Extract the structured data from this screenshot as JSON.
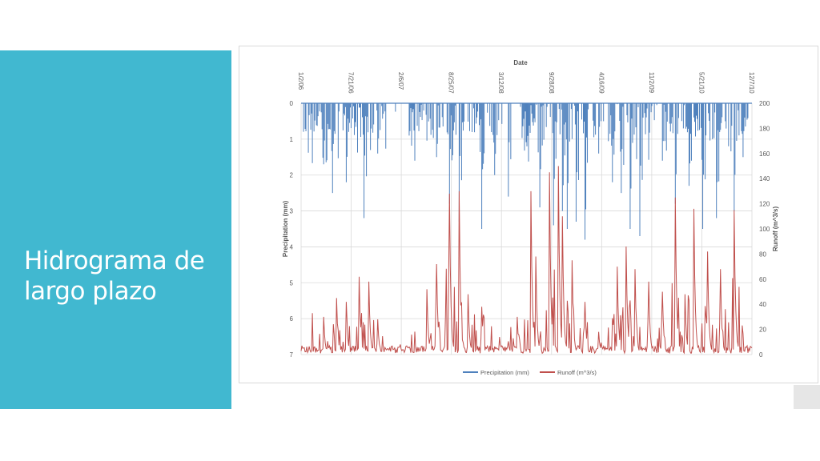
{
  "slide": {
    "title": "Hidrograma de\nlargo plazo",
    "accent_color": "#41b8d0"
  },
  "chart_data": {
    "type": "line",
    "title": "",
    "xlabel": "Date",
    "ylabel_left": "Precipitation (mm)",
    "ylabel_right": "Runoff (m^3/s)",
    "left_axis": {
      "min": 0,
      "max": 7,
      "inverted": true,
      "ticks": [
        "0",
        "1",
        "2",
        "3",
        "4",
        "5",
        "6",
        "7"
      ]
    },
    "right_axis": {
      "min": 0,
      "max": 200,
      "ticks": [
        "200",
        "180",
        "160",
        "140",
        "120",
        "100",
        "80",
        "60",
        "40",
        "20",
        "0"
      ]
    },
    "x_ticks": [
      "1/2/06",
      "7/21/06",
      "2/6/07",
      "8/25/07",
      "3/12/08",
      "9/28/08",
      "4/16/09",
      "11/2/09",
      "5/21/10",
      "12/7/10"
    ],
    "x_axis_position": "top",
    "grid": true,
    "legend_position": "bottom",
    "colors": {
      "precipitation": "#4f81bd",
      "runoff": "#c0504d"
    },
    "precipitation_peaks": [
      {
        "x": 0.05,
        "y": 1.7
      },
      {
        "x": 0.07,
        "y": 2.5
      },
      {
        "x": 0.1,
        "y": 2.2
      },
      {
        "x": 0.14,
        "y": 3.2
      },
      {
        "x": 0.17,
        "y": 1.4
      },
      {
        "x": 0.24,
        "y": 0.9
      },
      {
        "x": 0.3,
        "y": 1.5
      },
      {
        "x": 0.33,
        "y": 2.8
      },
      {
        "x": 0.35,
        "y": 3.3
      },
      {
        "x": 0.4,
        "y": 3.5
      },
      {
        "x": 0.43,
        "y": 2.0
      },
      {
        "x": 0.46,
        "y": 2.6
      },
      {
        "x": 0.5,
        "y": 1.2
      },
      {
        "x": 0.53,
        "y": 2.9
      },
      {
        "x": 0.56,
        "y": 3.4
      },
      {
        "x": 0.58,
        "y": 3.0
      },
      {
        "x": 0.59,
        "y": 3.5
      },
      {
        "x": 0.61,
        "y": 3.3
      },
      {
        "x": 0.63,
        "y": 3.8
      },
      {
        "x": 0.66,
        "y": 1.4
      },
      {
        "x": 0.69,
        "y": 2.2
      },
      {
        "x": 0.71,
        "y": 2.5
      },
      {
        "x": 0.73,
        "y": 3.5
      },
      {
        "x": 0.75,
        "y": 3.7
      },
      {
        "x": 0.8,
        "y": 1.6
      },
      {
        "x": 0.83,
        "y": 2.8
      },
      {
        "x": 0.86,
        "y": 2.3
      },
      {
        "x": 0.89,
        "y": 3.5
      },
      {
        "x": 0.92,
        "y": 3.2
      },
      {
        "x": 0.96,
        "y": 3.0
      },
      {
        "x": 0.98,
        "y": 1.5
      }
    ],
    "runoff_peaks": [
      {
        "x": 0.05,
        "y": 30
      },
      {
        "x": 0.08,
        "y": 45
      },
      {
        "x": 0.1,
        "y": 42
      },
      {
        "x": 0.13,
        "y": 62
      },
      {
        "x": 0.15,
        "y": 58
      },
      {
        "x": 0.17,
        "y": 28
      },
      {
        "x": 0.22,
        "y": 8
      },
      {
        "x": 0.28,
        "y": 52
      },
      {
        "x": 0.3,
        "y": 72
      },
      {
        "x": 0.33,
        "y": 128
      },
      {
        "x": 0.35,
        "y": 130
      },
      {
        "x": 0.37,
        "y": 48
      },
      {
        "x": 0.4,
        "y": 38
      },
      {
        "x": 0.44,
        "y": 14
      },
      {
        "x": 0.48,
        "y": 30
      },
      {
        "x": 0.51,
        "y": 130
      },
      {
        "x": 0.52,
        "y": 78
      },
      {
        "x": 0.55,
        "y": 145
      },
      {
        "x": 0.57,
        "y": 150
      },
      {
        "x": 0.58,
        "y": 110
      },
      {
        "x": 0.6,
        "y": 75
      },
      {
        "x": 0.63,
        "y": 42
      },
      {
        "x": 0.66,
        "y": 18
      },
      {
        "x": 0.7,
        "y": 70
      },
      {
        "x": 0.72,
        "y": 86
      },
      {
        "x": 0.74,
        "y": 68
      },
      {
        "x": 0.77,
        "y": 58
      },
      {
        "x": 0.8,
        "y": 50
      },
      {
        "x": 0.83,
        "y": 125
      },
      {
        "x": 0.85,
        "y": 48
      },
      {
        "x": 0.87,
        "y": 116
      },
      {
        "x": 0.9,
        "y": 82
      },
      {
        "x": 0.93,
        "y": 68
      },
      {
        "x": 0.96,
        "y": 115
      }
    ],
    "series": [
      {
        "name": "Precipitation (mm)"
      },
      {
        "name": "Runoff (m^3/s)"
      }
    ]
  }
}
